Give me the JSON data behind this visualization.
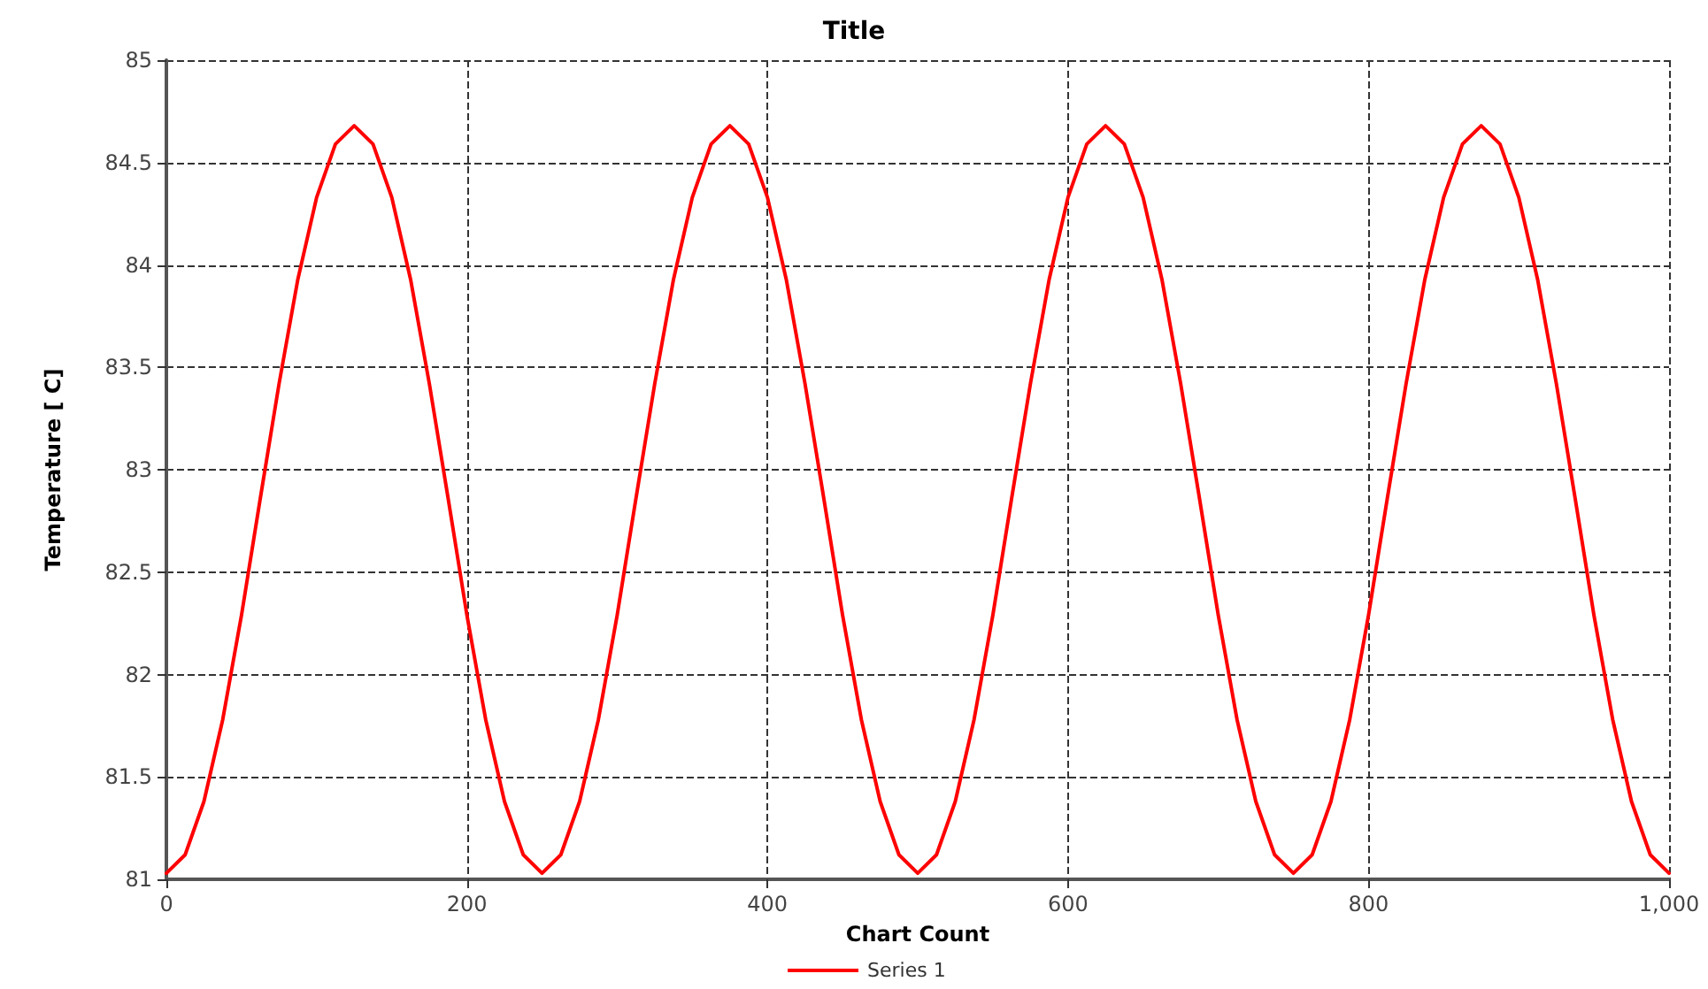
{
  "chart_data": {
    "type": "line",
    "title": "Title",
    "xlabel": "Chart Count",
    "ylabel": "Temperature [ C]",
    "x": [
      0,
      12.5,
      25,
      37.5,
      50,
      62.5,
      75,
      87.5,
      100,
      112.5,
      125,
      137.5,
      150,
      162.5,
      175,
      187.5,
      200,
      212.5,
      225,
      237.5,
      250,
      262.5,
      275,
      287.5,
      300,
      312.5,
      325,
      337.5,
      350,
      362.5,
      375,
      387.5,
      400,
      412.5,
      425,
      437.5,
      450,
      462.5,
      475,
      487.5,
      500,
      512.5,
      525,
      537.5,
      550,
      562.5,
      575,
      587.5,
      600,
      612.5,
      625,
      637.5,
      650,
      662.5,
      675,
      687.5,
      700,
      712.5,
      725,
      737.5,
      750,
      762.5,
      775,
      787.5,
      800,
      812.5,
      825,
      837.5,
      850,
      862.5,
      875,
      887.5,
      900,
      912.5,
      925,
      937.5,
      950,
      962.5,
      975,
      987.5,
      1000
    ],
    "series": [
      {
        "name": "Series 1",
        "color": "#ff0000",
        "values": [
          81.03,
          81.12,
          81.38,
          81.78,
          82.29,
          82.86,
          83.42,
          83.93,
          84.33,
          84.59,
          84.68,
          84.59,
          84.33,
          83.93,
          83.42,
          82.86,
          82.29,
          81.78,
          81.38,
          81.12,
          81.03,
          81.12,
          81.38,
          81.78,
          82.29,
          82.86,
          83.42,
          83.93,
          84.33,
          84.59,
          84.68,
          84.59,
          84.33,
          83.93,
          83.42,
          82.86,
          82.29,
          81.78,
          81.38,
          81.12,
          81.03,
          81.12,
          81.38,
          81.78,
          82.29,
          82.86,
          83.42,
          83.93,
          84.33,
          84.59,
          84.68,
          84.59,
          84.33,
          83.93,
          83.42,
          82.86,
          82.29,
          81.78,
          81.38,
          81.12,
          81.03,
          81.12,
          81.38,
          81.78,
          82.29,
          82.86,
          83.42,
          83.93,
          84.33,
          84.59,
          84.68,
          84.59,
          84.33,
          83.93,
          83.42,
          82.86,
          82.29,
          81.78,
          81.38,
          81.12,
          81.03
        ]
      }
    ],
    "xlim": [
      0,
      1000
    ],
    "xticks": [
      0,
      200,
      400,
      600,
      800,
      {
        "value": 1000,
        "label": "1,000"
      }
    ],
    "ylim": [
      81,
      85
    ],
    "yticks": [
      81,
      81.5,
      82,
      82.5,
      83,
      83.5,
      84,
      84.5,
      85
    ],
    "grid": true,
    "legend": "bottom",
    "marker": "none",
    "line_style": "solid"
  }
}
